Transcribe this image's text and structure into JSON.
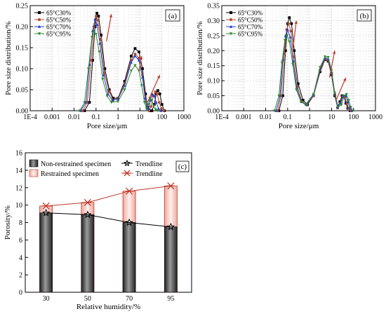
{
  "chart_data": [
    {
      "panel": "(a)",
      "type": "line",
      "xlabel": "Pore size/μm",
      "ylabel": "Pore size distribution/%",
      "xscale": "log",
      "xlim": [
        0.0001,
        1000
      ],
      "ylim": [
        0,
        0.25
      ],
      "xticks": [
        "1E-4",
        "0.001",
        "0.01",
        "0.1",
        "1",
        "10",
        "100",
        "1000"
      ],
      "yticks": [
        "0.00",
        "0.05",
        "0.10",
        "0.15",
        "0.20",
        "0.25"
      ],
      "grid": true,
      "legend_position": "top-left",
      "series": [
        {
          "name": "65°C30%",
          "color": "#000000",
          "marker": "square",
          "x": [
            0.03,
            0.05,
            0.07,
            0.09,
            0.11,
            0.13,
            0.17,
            0.25,
            0.4,
            0.6,
            1,
            2,
            4,
            6,
            9,
            13,
            18,
            22,
            28,
            35,
            45,
            55,
            65,
            80,
            100,
            130
          ],
          "y": [
            0,
            0.02,
            0.12,
            0.2,
            0.232,
            0.225,
            0.18,
            0.1,
            0.05,
            0.03,
            0.03,
            0.07,
            0.13,
            0.148,
            0.14,
            0.1,
            0.04,
            0.008,
            0,
            0,
            0.015,
            0.04,
            0.048,
            0.04,
            0.015,
            0
          ]
        },
        {
          "name": "65°C50%",
          "color": "#b5482d",
          "marker": "circle",
          "x": [
            0.025,
            0.04,
            0.06,
            0.08,
            0.1,
            0.12,
            0.16,
            0.24,
            0.4,
            0.6,
            1,
            2,
            4,
            6,
            9,
            13,
            18,
            22,
            26,
            32,
            40,
            50,
            60,
            75,
            95,
            120
          ],
          "y": [
            0,
            0.02,
            0.12,
            0.2,
            0.225,
            0.215,
            0.17,
            0.09,
            0.045,
            0.025,
            0.03,
            0.065,
            0.12,
            0.135,
            0.125,
            0.085,
            0.03,
            0.005,
            0,
            0.01,
            0.035,
            0.045,
            0.04,
            0.02,
            0.005,
            0
          ]
        },
        {
          "name": "65°C70%",
          "color": "#1f3fd1",
          "marker": "triangle",
          "x": [
            0.02,
            0.035,
            0.05,
            0.07,
            0.09,
            0.11,
            0.15,
            0.22,
            0.35,
            0.55,
            1,
            2,
            4,
            6,
            9,
            13,
            17,
            21,
            25,
            30,
            36,
            45,
            55,
            70,
            90
          ],
          "y": [
            0,
            0.02,
            0.11,
            0.19,
            0.218,
            0.205,
            0.16,
            0.085,
            0.04,
            0.025,
            0.028,
            0.06,
            0.115,
            0.13,
            0.12,
            0.08,
            0.03,
            0.005,
            0.005,
            0.025,
            0.04,
            0.035,
            0.02,
            0.005,
            0
          ]
        },
        {
          "name": "65°C95%",
          "color": "#2e8b2e",
          "marker": "triangle-down",
          "x": [
            0.018,
            0.03,
            0.045,
            0.065,
            0.08,
            0.1,
            0.14,
            0.2,
            0.32,
            0.5,
            1,
            2,
            4,
            6,
            9,
            12,
            16,
            20,
            24,
            28,
            34,
            42,
            52,
            65
          ],
          "y": [
            0,
            0.02,
            0.1,
            0.175,
            0.19,
            0.182,
            0.14,
            0.075,
            0.035,
            0.02,
            0.022,
            0.05,
            0.095,
            0.108,
            0.095,
            0.06,
            0.02,
            0.005,
            0.015,
            0.03,
            0.025,
            0.012,
            0.003,
            0
          ]
        }
      ]
    },
    {
      "panel": "(b)",
      "type": "line",
      "xlabel": "Pore size/μm",
      "ylabel": "Pore size distribution/%",
      "xscale": "log",
      "xlim": [
        0.0001,
        1000
      ],
      "ylim": [
        0,
        0.35
      ],
      "xticks": [
        "1E-4",
        "0.001",
        "0.01",
        "0.1",
        "1",
        "10",
        "100",
        "1000"
      ],
      "yticks": [
        "0.00",
        "0.05",
        "0.10",
        "0.15",
        "0.20",
        "0.25",
        "0.30",
        "0.35"
      ],
      "grid": true,
      "legend_position": "top-left",
      "series": [
        {
          "name": "65°C30%",
          "color": "#000000",
          "marker": "square",
          "x": [
            0.04,
            0.06,
            0.08,
            0.1,
            0.12,
            0.15,
            0.2,
            0.3,
            0.5,
            0.8,
            1.5,
            3,
            5,
            7,
            10,
            14,
            19,
            24,
            30,
            38,
            45,
            55,
            70
          ],
          "y": [
            0,
            0.05,
            0.2,
            0.29,
            0.31,
            0.29,
            0.2,
            0.09,
            0.035,
            0.02,
            0.05,
            0.13,
            0.17,
            0.165,
            0.12,
            0.05,
            0.01,
            0.03,
            0.05,
            0.045,
            0.025,
            0.008,
            0
          ]
        },
        {
          "name": "65°C50%",
          "color": "#b5482d",
          "marker": "circle",
          "x": [
            0.035,
            0.05,
            0.07,
            0.09,
            0.11,
            0.14,
            0.19,
            0.28,
            0.45,
            0.75,
            1.5,
            3,
            5,
            7,
            10,
            14,
            19,
            25,
            32,
            40,
            50,
            60,
            75
          ],
          "y": [
            0,
            0.05,
            0.19,
            0.27,
            0.29,
            0.265,
            0.18,
            0.08,
            0.03,
            0.02,
            0.05,
            0.135,
            0.172,
            0.168,
            0.125,
            0.055,
            0.01,
            0.025,
            0.048,
            0.045,
            0.025,
            0.008,
            0
          ]
        },
        {
          "name": "65°C70%",
          "color": "#1f3fd1",
          "marker": "triangle",
          "x": [
            0.03,
            0.045,
            0.06,
            0.08,
            0.1,
            0.13,
            0.18,
            0.26,
            0.42,
            0.7,
            1.5,
            3,
            5,
            7,
            10,
            14,
            19,
            26,
            34,
            44,
            55,
            68,
            85
          ],
          "y": [
            0,
            0.05,
            0.17,
            0.25,
            0.27,
            0.245,
            0.165,
            0.075,
            0.03,
            0.02,
            0.052,
            0.14,
            0.176,
            0.172,
            0.13,
            0.058,
            0.012,
            0.025,
            0.05,
            0.05,
            0.03,
            0.01,
            0
          ]
        },
        {
          "name": "65°C95%",
          "color": "#2e8b2e",
          "marker": "triangle-down",
          "x": [
            0.025,
            0.04,
            0.055,
            0.075,
            0.095,
            0.12,
            0.17,
            0.25,
            0.4,
            0.65,
            1.5,
            3,
            5,
            7,
            10,
            14,
            20,
            28,
            38,
            48,
            60,
            75,
            95
          ],
          "y": [
            0,
            0.05,
            0.16,
            0.235,
            0.25,
            0.23,
            0.155,
            0.07,
            0.03,
            0.02,
            0.055,
            0.145,
            0.18,
            0.178,
            0.135,
            0.06,
            0.012,
            0.02,
            0.05,
            0.055,
            0.035,
            0.012,
            0
          ]
        }
      ]
    },
    {
      "panel": "(c)",
      "type": "bar",
      "xlabel": "Relative humidity/%",
      "ylabel": "Porosity/%",
      "categories": [
        "30",
        "50",
        "70",
        "95"
      ],
      "ylim": [
        0,
        16
      ],
      "yticks": [
        "0",
        "2",
        "4",
        "6",
        "8",
        "10",
        "12",
        "14",
        "16"
      ],
      "legend_position": "top",
      "series": [
        {
          "name": "Non-restrained specimen",
          "values": [
            9.1,
            8.9,
            8.0,
            7.5
          ],
          "fill": "#3a3a3a"
        },
        {
          "name": "Restrained specimen",
          "values": [
            9.9,
            10.3,
            11.6,
            12.2
          ],
          "fill": "#f4b8ae"
        }
      ],
      "trendlines": [
        {
          "name": "Trendline",
          "series": "Non-restrained specimen",
          "values": [
            9.1,
            8.9,
            8.0,
            7.5
          ],
          "color": "#000000",
          "marker": "star"
        },
        {
          "name": "Trendline",
          "series": "Restrained specimen",
          "values": [
            9.9,
            10.3,
            11.6,
            12.2
          ],
          "color": "#c0392b",
          "marker": "x-star"
        }
      ]
    }
  ]
}
